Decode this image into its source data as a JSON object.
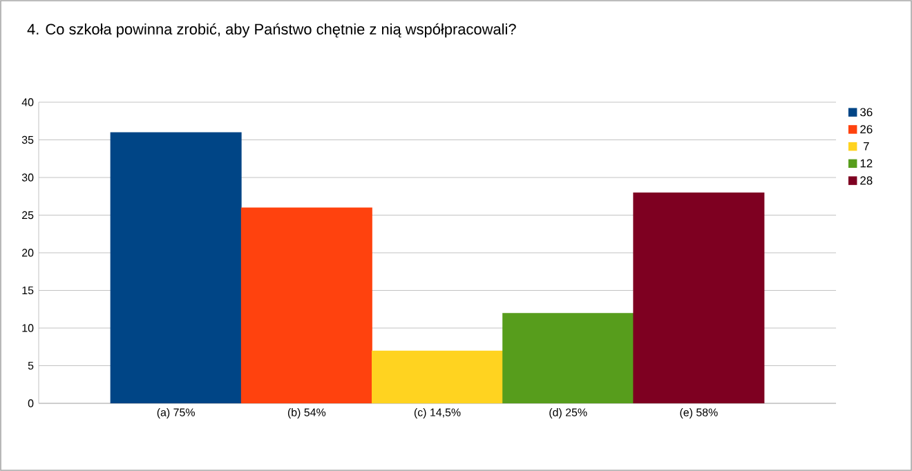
{
  "chart_data": {
    "type": "bar",
    "title": "4. Co szkoła powinna zrobić, aby Państwo chętnie z nią współpracowali?",
    "categories": [
      "(a) 75%",
      "(b) 54%",
      "(c) 14,5%",
      "(d) 25%",
      "(e) 58%"
    ],
    "series": [
      {
        "name": "36",
        "color": "#004586",
        "values": [
          36,
          null,
          null,
          null,
          null
        ]
      },
      {
        "name": "26",
        "color": "#ff420e",
        "values": [
          null,
          26,
          null,
          null,
          null
        ]
      },
      {
        "name": "7",
        "color": "#ffd320",
        "values": [
          null,
          null,
          7,
          null,
          null
        ]
      },
      {
        "name": "12",
        "color": "#579d1c",
        "values": [
          null,
          null,
          null,
          12,
          null
        ]
      },
      {
        "name": "28",
        "color": "#7e0021",
        "values": [
          null,
          null,
          null,
          null,
          28
        ]
      }
    ],
    "ylim": [
      0,
      40
    ],
    "yticks": [
      0,
      5,
      10,
      15,
      20,
      25,
      30,
      35,
      40
    ],
    "grid": "y",
    "legend": "right"
  }
}
